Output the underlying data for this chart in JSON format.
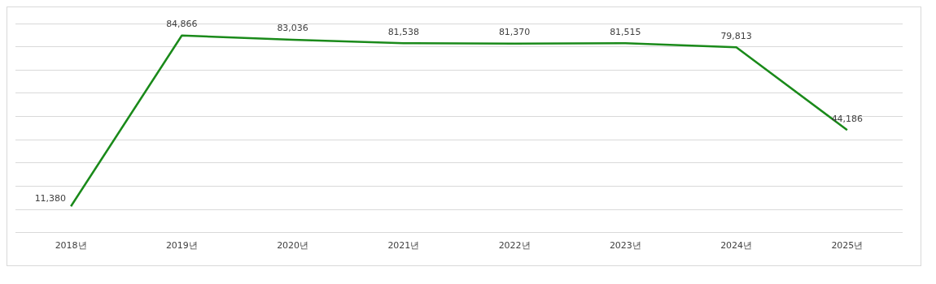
{
  "chart_data": {
    "type": "line",
    "categories": [
      "2018년",
      "2019년",
      "2020년",
      "2021년",
      "2022년",
      "2023년",
      "2024년",
      "2025년"
    ],
    "series": [
      {
        "color": "#1a8a1a",
        "values": [
          11380,
          84866,
          83036,
          81538,
          81370,
          81515,
          79813,
          44186
        ],
        "value_labels": [
          "11,380",
          "84,866",
          "83,036",
          "81,538",
          "81,370",
          "81,515",
          "79,813",
          "44,186"
        ]
      }
    ],
    "tick_labels": "x",
    "grid": "y",
    "legend": false,
    "marker": "none",
    "line_style": "solid"
  }
}
